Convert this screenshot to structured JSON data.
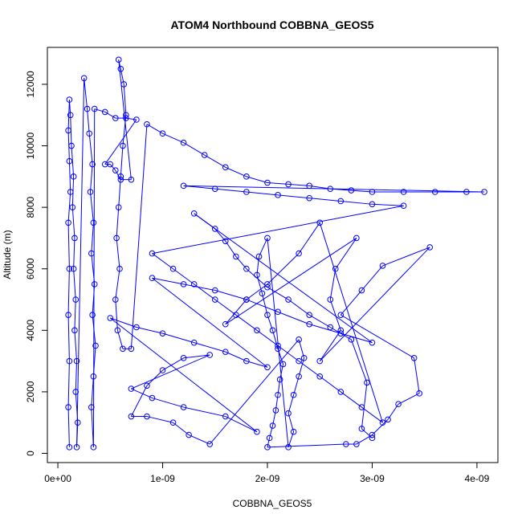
{
  "chart_data": {
    "type": "scatter",
    "title": "ATOM4 Northbound COBBNA_GEOS5",
    "xlabel": "COBBNA_GEOS5",
    "ylabel": "Altitude (m)",
    "xlim": [
      -1e-10,
      4.2e-09
    ],
    "ylim": [
      -300,
      13200
    ],
    "x_ticks": [
      0,
      1e-09,
      2e-09,
      3e-09,
      4e-09
    ],
    "x_tick_labels": [
      "0e+00",
      "1e-09",
      "2e-09",
      "3e-09",
      "4e-09"
    ],
    "y_ticks": [
      0,
      2000,
      4000,
      6000,
      8000,
      10000,
      12000
    ],
    "y_tick_labels": [
      "0",
      "2000",
      "4000",
      "6000",
      "8000",
      "10000",
      "12000"
    ],
    "grid": false,
    "series": [
      {
        "color": "#0000ff",
        "marker": "open-circle",
        "points": [
          [
            1.1e-10,
            200
          ],
          [
            1e-10,
            1500
          ],
          [
            1.1e-10,
            3000
          ],
          [
            1e-10,
            4500
          ],
          [
            1.1e-10,
            6000
          ],
          [
            1e-10,
            7500
          ],
          [
            1.2e-10,
            8500
          ],
          [
            1.1e-10,
            9500
          ],
          [
            1e-10,
            10500
          ],
          [
            1.1e-10,
            11500
          ],
          [
            1.2e-10,
            11000
          ],
          [
            1.3e-10,
            10000
          ],
          [
            1.5e-10,
            9000
          ],
          [
            1.4e-10,
            8000
          ],
          [
            1.6e-10,
            7000
          ],
          [
            1.5e-10,
            6000
          ],
          [
            1.7e-10,
            5000
          ],
          [
            1.6e-10,
            4000
          ],
          [
            1.8e-10,
            3000
          ],
          [
            1.7e-10,
            2000
          ],
          [
            1.9e-10,
            1000
          ],
          [
            1.8e-10,
            200
          ],
          [
            2.5e-10,
            12200
          ],
          [
            2.8e-10,
            11200
          ],
          [
            3e-10,
            10400
          ],
          [
            3.3e-10,
            9400
          ],
          [
            3.1e-10,
            8500
          ],
          [
            3.4e-10,
            7500
          ],
          [
            3.2e-10,
            6500
          ],
          [
            3.5e-10,
            5500
          ],
          [
            3.3e-10,
            4500
          ],
          [
            3.6e-10,
            3500
          ],
          [
            3.4e-10,
            2500
          ],
          [
            3.2e-10,
            1500
          ],
          [
            3.4e-10,
            200
          ],
          [
            3.5e-10,
            11200
          ],
          [
            4.5e-10,
            11100
          ],
          [
            5.5e-10,
            10900
          ],
          [
            6.5e-10,
            10900
          ],
          [
            7.5e-10,
            10850
          ],
          [
            4.5e-10,
            9400
          ],
          [
            5e-10,
            9400
          ],
          [
            5.5e-10,
            9200
          ],
          [
            6e-10,
            8900
          ],
          [
            7e-10,
            8900
          ],
          [
            5.8e-10,
            12800
          ],
          [
            6e-10,
            12500
          ],
          [
            6.3e-10,
            12000
          ],
          [
            6.5e-10,
            11000
          ],
          [
            6.2e-10,
            10000
          ],
          [
            6e-10,
            9000
          ],
          [
            5.8e-10,
            8000
          ],
          [
            5.6e-10,
            7000
          ],
          [
            5.9e-10,
            6000
          ],
          [
            5.5e-10,
            5000
          ],
          [
            5.7e-10,
            4000
          ],
          [
            6.2e-10,
            3400
          ],
          [
            7e-10,
            3400
          ],
          [
            8.5e-10,
            10700
          ],
          [
            1e-09,
            10400
          ],
          [
            1.2e-09,
            10100
          ],
          [
            1.4e-09,
            9700
          ],
          [
            1.6e-09,
            9300
          ],
          [
            1.8e-09,
            9000
          ],
          [
            2e-09,
            8800
          ],
          [
            2.2e-09,
            8750
          ],
          [
            2.4e-09,
            8700
          ],
          [
            2.6e-09,
            8600
          ],
          [
            2.8e-09,
            8550
          ],
          [
            3e-09,
            8500
          ],
          [
            3.3e-09,
            8500
          ],
          [
            3.6e-09,
            8500
          ],
          [
            3.9e-09,
            8500
          ],
          [
            4.07e-09,
            8500
          ],
          [
            1.2e-09,
            8700
          ],
          [
            1.5e-09,
            8600
          ],
          [
            1.8e-09,
            8500
          ],
          [
            2.1e-09,
            8400
          ],
          [
            2.4e-09,
            8300
          ],
          [
            2.7e-09,
            8200
          ],
          [
            3e-09,
            8100
          ],
          [
            3.3e-09,
            8050
          ],
          [
            9e-10,
            6500
          ],
          [
            1.1e-09,
            6000
          ],
          [
            1.3e-09,
            5500
          ],
          [
            1.5e-09,
            5000
          ],
          [
            1.7e-09,
            4500
          ],
          [
            1.9e-09,
            4000
          ],
          [
            2.1e-09,
            3500
          ],
          [
            2.3e-09,
            3000
          ],
          [
            2.5e-09,
            2500
          ],
          [
            2.7e-09,
            2000
          ],
          [
            2.9e-09,
            1500
          ],
          [
            3.1e-09,
            1000
          ],
          [
            2.5e-09,
            7500
          ],
          [
            2.3e-09,
            6500
          ],
          [
            2e-09,
            5500
          ],
          [
            1.8e-09,
            5000
          ],
          [
            1.6e-09,
            4200
          ],
          [
            2.85e-09,
            7000
          ],
          [
            2.65e-09,
            6000
          ],
          [
            2.6e-09,
            5000
          ],
          [
            2.7e-09,
            4000
          ],
          [
            2.5e-09,
            3000
          ],
          [
            3.55e-09,
            6700
          ],
          [
            3.1e-09,
            6100
          ],
          [
            2.9e-09,
            5300
          ],
          [
            2.7e-09,
            4500
          ],
          [
            3.4e-09,
            3100
          ],
          [
            3.45e-09,
            1950
          ],
          [
            3.25e-09,
            1600
          ],
          [
            3.15e-09,
            1100
          ],
          [
            3e-09,
            600
          ],
          [
            2.85e-09,
            300
          ],
          [
            2.75e-09,
            300
          ],
          [
            2e-09,
            200
          ],
          [
            2.02e-09,
            500
          ],
          [
            2.05e-09,
            900
          ],
          [
            2.08e-09,
            1400
          ],
          [
            2.1e-09,
            1900
          ],
          [
            2.12e-09,
            2400
          ],
          [
            2.15e-09,
            2900
          ],
          [
            2.1e-09,
            3400
          ],
          [
            2.05e-09,
            4000
          ],
          [
            2e-09,
            4500
          ],
          [
            1.95e-09,
            5200
          ],
          [
            1.9e-09,
            5800
          ],
          [
            1.92e-09,
            6400
          ],
          [
            2e-09,
            7000
          ],
          [
            2.2e-09,
            200
          ],
          [
            2.25e-09,
            700
          ],
          [
            2.2e-09,
            1300
          ],
          [
            2.25e-09,
            1900
          ],
          [
            2.3e-09,
            2500
          ],
          [
            2.35e-09,
            3100
          ],
          [
            2.3e-09,
            3700
          ],
          [
            1.45e-09,
            300
          ],
          [
            1.25e-09,
            600
          ],
          [
            1.1e-09,
            1000
          ],
          [
            8.5e-10,
            1200
          ],
          [
            7e-10,
            1200
          ],
          [
            8.5e-10,
            2200
          ],
          [
            1e-09,
            2700
          ],
          [
            1.2e-09,
            3100
          ],
          [
            1.45e-09,
            3200
          ],
          [
            7e-10,
            2100
          ],
          [
            9e-10,
            1800
          ],
          [
            1.2e-09,
            1500
          ],
          [
            1.6e-09,
            1200
          ],
          [
            1.9e-09,
            700
          ],
          [
            5e-10,
            4400
          ],
          [
            7.5e-10,
            4100
          ],
          [
            1e-09,
            3900
          ],
          [
            1.3e-09,
            3600
          ],
          [
            1.6e-09,
            3300
          ],
          [
            1.8e-09,
            3000
          ],
          [
            2e-09,
            2800
          ],
          [
            9e-10,
            5700
          ],
          [
            1.2e-09,
            5500
          ],
          [
            1.5e-09,
            5300
          ],
          [
            1.8e-09,
            5000
          ],
          [
            2.1e-09,
            4600
          ],
          [
            2.4e-09,
            4200
          ],
          [
            2.7e-09,
            3900
          ],
          [
            3e-09,
            3600
          ],
          [
            1.3e-09,
            7800
          ],
          [
            1.5e-09,
            7300
          ],
          [
            1.6e-09,
            6900
          ],
          [
            1.7e-09,
            6400
          ],
          [
            1.8e-09,
            6000
          ],
          [
            2e-09,
            5400
          ],
          [
            2.2e-09,
            5000
          ],
          [
            2.4e-09,
            4500
          ],
          [
            2.6e-09,
            4100
          ],
          [
            2.8e-09,
            3700
          ],
          [
            2.95e-09,
            2300
          ],
          [
            2.9e-09,
            800
          ],
          [
            3e-09,
            500
          ]
        ]
      }
    ]
  }
}
